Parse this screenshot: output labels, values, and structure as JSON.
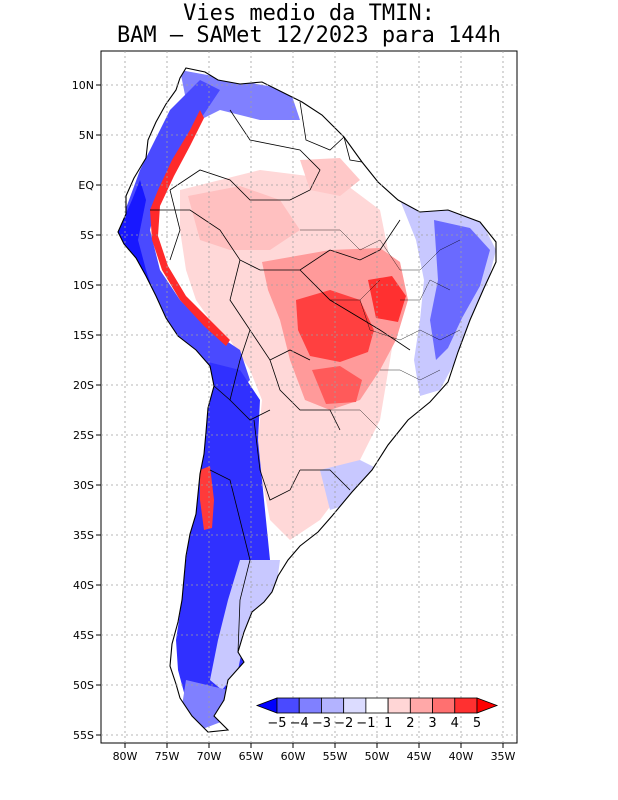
{
  "title": {
    "line1": "Vies medio da TMIN:",
    "line2": "BAM – SAMet 12/2023  para 144h"
  },
  "map": {
    "region": "South America",
    "variable": "TMIN mean bias",
    "lat_labels": [
      "10N",
      "5N",
      "EQ",
      "5S",
      "10S",
      "15S",
      "20S",
      "25S",
      "30S",
      "35S",
      "40S",
      "45S",
      "50S",
      "55S"
    ],
    "lon_labels": [
      "80W",
      "75W",
      "70W",
      "65W",
      "60W",
      "55W",
      "50W",
      "45W",
      "40W",
      "35W"
    ]
  },
  "colorbar": {
    "labels": [
      "−5",
      "−4",
      "−3",
      "−2",
      "−1",
      "1",
      "2",
      "3",
      "4",
      "5"
    ],
    "colors": [
      "#0000ff",
      "#4a4aff",
      "#8080ff",
      "#b3b3ff",
      "#dcdcff",
      "#ffffff",
      "#ffd6d6",
      "#ffa8a8",
      "#ff7070",
      "#ff3030",
      "#ff0000"
    ]
  },
  "colors": {
    "strong_cold": "#1818ff",
    "moderate_cold": "#6a6aff",
    "light_cold": "#c8c8ff",
    "neutral": "#ffffff",
    "light_warm": "#ffd8d8",
    "moderate_warm": "#ff9a9a",
    "strong_warm": "#ff2a2a",
    "grid": "#a0a0a0"
  }
}
